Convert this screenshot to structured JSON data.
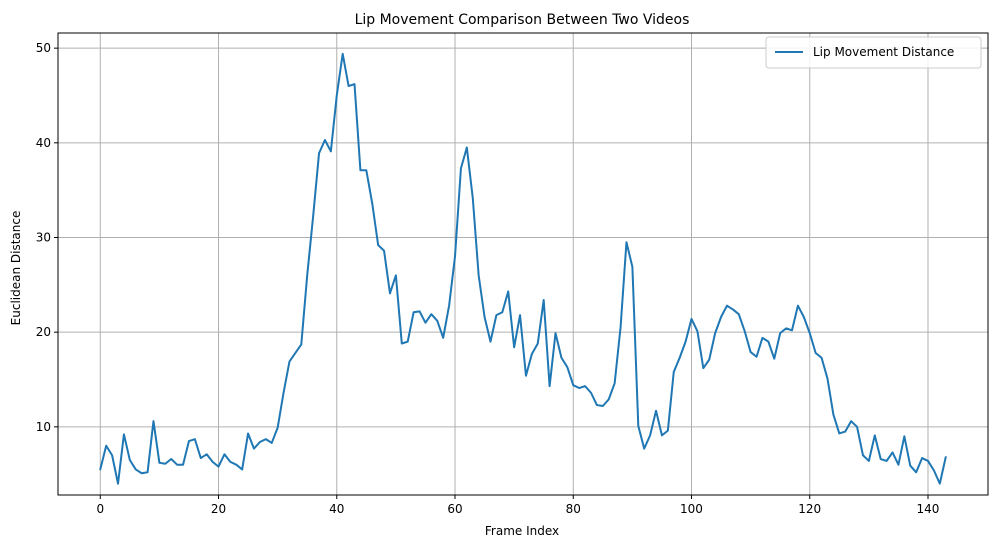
{
  "chart_data": {
    "type": "line",
    "title": "Lip Movement Comparison Between Two Videos",
    "xlabel": "Frame Index",
    "ylabel": "Euclidean Distance",
    "xlim": [
      -7.15,
      150.15
    ],
    "ylim": [
      2.8,
      51.6
    ],
    "xticks": [
      0,
      20,
      40,
      60,
      80,
      100,
      120,
      140
    ],
    "yticks": [
      10,
      20,
      30,
      40,
      50
    ],
    "grid": true,
    "legend_position": "top-right",
    "series": [
      {
        "name": "Lip Movement Distance",
        "color": "#1f77b4",
        "x_start": 0,
        "values": [
          5.5,
          8.0,
          7.0,
          4.0,
          9.2,
          6.5,
          5.5,
          5.1,
          5.2,
          10.6,
          6.2,
          6.1,
          6.6,
          6.0,
          6.0,
          8.5,
          8.7,
          6.7,
          7.1,
          6.3,
          5.8,
          7.1,
          6.3,
          6.0,
          5.5,
          9.3,
          7.7,
          8.4,
          8.7,
          8.3,
          9.9,
          13.6,
          16.9,
          17.8,
          18.7,
          26.0,
          32.2,
          38.9,
          40.3,
          39.1,
          45.0,
          49.4,
          46.0,
          46.2,
          37.1,
          37.1,
          33.6,
          29.2,
          28.6,
          24.1,
          26.0,
          18.8,
          19.0,
          22.1,
          22.2,
          21.0,
          21.9,
          21.2,
          19.4,
          22.8,
          28.0,
          37.3,
          39.5,
          34.2,
          26.0,
          21.6,
          19.0,
          21.8,
          22.1,
          24.3,
          18.4,
          21.8,
          15.4,
          17.7,
          18.8,
          23.4,
          14.3,
          19.9,
          17.3,
          16.3,
          14.4,
          14.1,
          14.3,
          13.6,
          12.3,
          12.2,
          12.9,
          14.6,
          20.5,
          29.5,
          26.9,
          10.1,
          7.7,
          9.1,
          11.7,
          9.1,
          9.6,
          15.8,
          17.3,
          19.0,
          21.4,
          20.1,
          16.2,
          17.1,
          19.9,
          21.6,
          22.8,
          22.4,
          21.9,
          20.1,
          17.9,
          17.4,
          19.4,
          19.0,
          17.2,
          19.9,
          20.4,
          20.2,
          22.8,
          21.6,
          19.9,
          17.8,
          17.3,
          15.1,
          11.3,
          9.3,
          9.5,
          10.6,
          10.0,
          7.0,
          6.4,
          9.1,
          6.6,
          6.4,
          7.3,
          6.0,
          9.0,
          5.9,
          5.2,
          6.7,
          6.4,
          5.4,
          4.0,
          6.8
        ]
      }
    ]
  }
}
